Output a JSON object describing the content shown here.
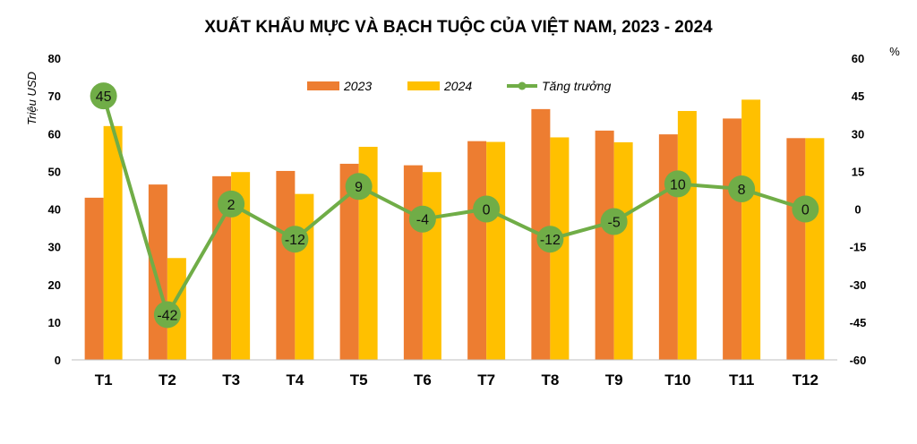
{
  "chart_data": {
    "type": "bar",
    "title": "XUẤT KHẨU MỰC VÀ  BẠCH TUỘC CỦA VIỆT NAM, 2023 - 2024",
    "ylabel": "Triệu USD",
    "y2label": "%",
    "ylim": [
      0,
      80
    ],
    "y2lim": [
      -60,
      60
    ],
    "yticks": [
      0,
      10,
      20,
      30,
      40,
      50,
      60,
      70,
      80
    ],
    "y2ticks": [
      -60,
      -45,
      -30,
      -15,
      0,
      15,
      30,
      45,
      60
    ],
    "categories": [
      "T1",
      "T2",
      "T3",
      "T4",
      "T5",
      "T6",
      "T7",
      "T8",
      "T9",
      "T10",
      "T11",
      "T12"
    ],
    "series": [
      {
        "name": "2023",
        "type": "bar",
        "color": "#ED7D31",
        "values": [
          43,
          46.5,
          48.7,
          50.1,
          52,
          51.6,
          58,
          66.5,
          60.8,
          59.8,
          64,
          58.8
        ]
      },
      {
        "name": "2024",
        "type": "bar",
        "color": "#FFC000",
        "values": [
          62,
          27,
          49.8,
          44,
          56.5,
          49.8,
          57.8,
          59,
          57.7,
          66,
          69,
          58.8
        ]
      },
      {
        "name": "Tăng trưởng",
        "type": "line",
        "axis": "right",
        "color": "#70AD47",
        "values": [
          45,
          -42,
          2,
          -12,
          9,
          -4,
          0,
          -12,
          -5,
          10,
          8,
          0
        ],
        "labels": [
          "45",
          "-42",
          "2",
          "-12",
          "9",
          "-4",
          "0",
          "-12",
          "-5",
          "10",
          "8",
          "0"
        ]
      }
    ],
    "legend_position": "top-center",
    "grid": false
  }
}
